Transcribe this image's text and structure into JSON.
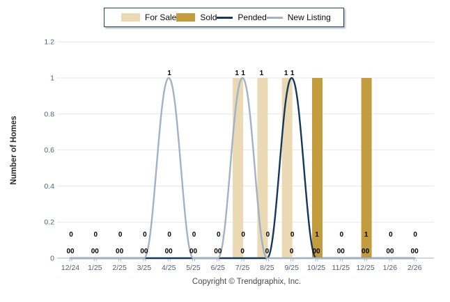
{
  "legend": {
    "items": [
      {
        "label": "For Sale",
        "swatch": "bar",
        "color": "#ebd9b4"
      },
      {
        "label": "Sold",
        "swatch": "bar",
        "color": "#c39c3d"
      },
      {
        "label": "Pended",
        "swatch": "line",
        "color": "#16365c"
      },
      {
        "label": "New Listing",
        "swatch": "line",
        "color": "#a3b1c6"
      }
    ]
  },
  "chart_data": {
    "type": "mixed-bar-line",
    "title": "",
    "ylabel": "Number of Homes",
    "xlabel": "",
    "categories": [
      "12/24",
      "1/25",
      "2/25",
      "3/25",
      "4/25",
      "5/25",
      "6/25",
      "7/25",
      "8/25",
      "9/25",
      "10/25",
      "11/25",
      "12/25",
      "1/26",
      "2/26"
    ],
    "ylim": [
      0,
      1.2
    ],
    "y_ticks": [
      "0",
      "0.2",
      "0.4",
      "0.6",
      "0.8",
      "1",
      "1.2"
    ],
    "grid": true,
    "legend_position": "top",
    "series": [
      {
        "name": "For Sale",
        "type": "bar",
        "color": "#ebd9b4",
        "values": [
          0,
          0,
          0,
          0,
          0,
          0,
          0,
          1,
          1,
          1,
          0,
          0,
          0,
          0,
          0
        ]
      },
      {
        "name": "Sold",
        "type": "bar",
        "color": "#c39c3d",
        "values": [
          0,
          0,
          0,
          0,
          0,
          0,
          0,
          0,
          0,
          0,
          1,
          0,
          1,
          0,
          0
        ]
      },
      {
        "name": "Pended",
        "type": "line",
        "color": "#16365c",
        "values": [
          0,
          0,
          0,
          0,
          0,
          0,
          0,
          0,
          0,
          1,
          0,
          0,
          0,
          0,
          0
        ]
      },
      {
        "name": "New Listing",
        "type": "line",
        "color": "#a3b1c6",
        "values": [
          0,
          0,
          0,
          0,
          1,
          0,
          0,
          1,
          0,
          0,
          0,
          0,
          0,
          0,
          0
        ]
      }
    ],
    "value_labels": {
      "top": [
        {
          "month_index": 4,
          "items": [
            {
              "series": "New Listing",
              "text": "1"
            }
          ]
        },
        {
          "month_index": 7,
          "items": [
            {
              "series": "For Sale",
              "text": "1"
            },
            {
              "series": "New Listing",
              "text": "1"
            }
          ]
        },
        {
          "month_index": 8,
          "items": [
            {
              "series": "For Sale",
              "text": "1"
            }
          ]
        },
        {
          "month_index": 9,
          "items": [
            {
              "series": "For Sale",
              "text": "1"
            },
            {
              "series": "Pended",
              "text": "1"
            }
          ]
        }
      ],
      "bottom_upper_row": [
        "0",
        "0",
        "0",
        "0",
        "0",
        "0",
        "0",
        "0",
        "0",
        "0",
        "1",
        "0",
        "1",
        "0",
        "0"
      ],
      "bottom_lower_row": [
        "00",
        "00",
        "00",
        "00",
        "00",
        "00",
        "00",
        "0",
        "0",
        "0",
        "00",
        "00",
        "00",
        "00",
        "00"
      ]
    }
  },
  "footer": {
    "copyright": "Copyright © Trendgraphix, Inc."
  },
  "colors": {
    "grid": "#e7e7e7",
    "axis_baseline": "#b4bfcc",
    "tick_mark": "#a9b3bf",
    "tick_text": "#4e5f77",
    "value_label_text": "#000000",
    "legend_border": "#22406b",
    "background": "#ffffff"
  }
}
